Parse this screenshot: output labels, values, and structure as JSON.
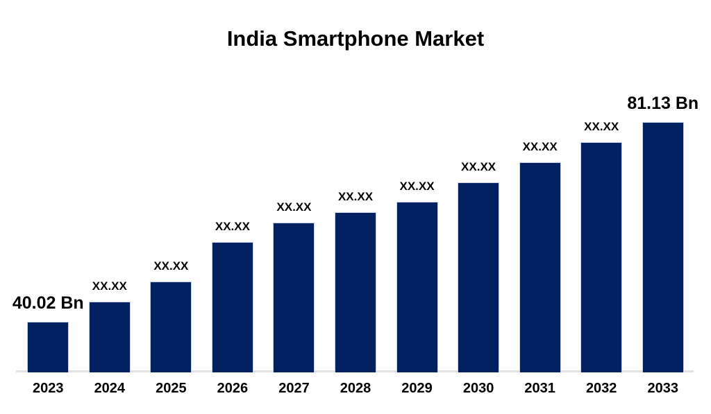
{
  "title": "India Smartphone Market",
  "colors": {
    "bar_fill": "#002060",
    "bar_border": "#c6d0e4",
    "axis_line": "#e2e2e2",
    "text": "#000000",
    "background": "#ffffff"
  },
  "chart_data": {
    "type": "bar",
    "title": "India Smartphone Market",
    "categories": [
      "2023",
      "2024",
      "2025",
      "2026",
      "2027",
      "2028",
      "2029",
      "2030",
      "2031",
      "2032",
      "2033"
    ],
    "values": [
      40.02,
      44.1,
      48.3,
      56.4,
      60.4,
      62.6,
      64.7,
      68.7,
      72.9,
      77.0,
      81.13
    ],
    "bar_labels": [
      "40.02 Bn",
      "XX.XX",
      "XX.XX",
      "XX.XX",
      "XX.XX",
      "XX.XX",
      "XX.XX",
      "XX.XX",
      "XX.XX",
      "XX.XX",
      "81.13 Bn"
    ],
    "emphasized_label_indices": [
      0,
      10
    ],
    "unit": "Bn",
    "xlabel": "",
    "ylabel": "",
    "ylim": [
      29.6,
      85
    ],
    "grid": false,
    "legend": false,
    "bar_color": "#002060"
  }
}
